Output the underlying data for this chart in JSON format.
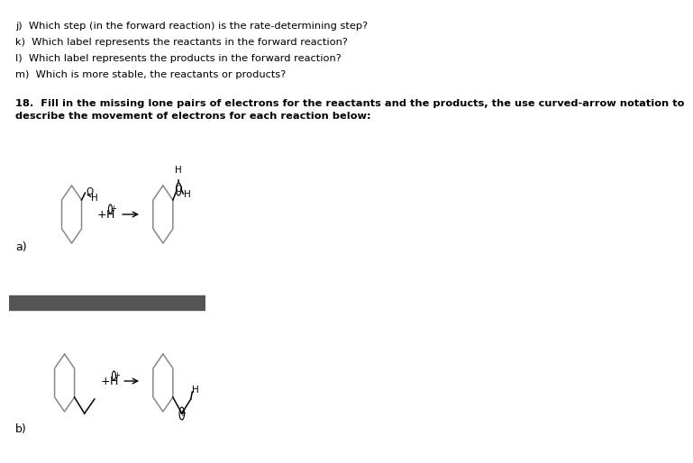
{
  "background_color": "#ffffff",
  "dark_band_color": "#555555",
  "text_color": "#000000",
  "lines_jm": [
    "j)  Which step (in the forward reaction) is the rate-determining step?",
    "k)  Which label represents the reactants in the forward reaction?",
    "l)  Which label represents the products in the forward reaction?",
    "m)  Which is more stable, the reactants or products?"
  ],
  "line18_1": "18.  Fill in the missing lone pairs of electrons for the reactants and the products, the use curved-arrow notation to",
  "line18_2": "describe the movement of electrons for each reaction below:",
  "label_a": "a)",
  "label_b": "b)",
  "fontsize_body": 8.2,
  "fontsize_labels": 9.0,
  "hex_color": "#a0a0a0",
  "bond_color": "#000000"
}
